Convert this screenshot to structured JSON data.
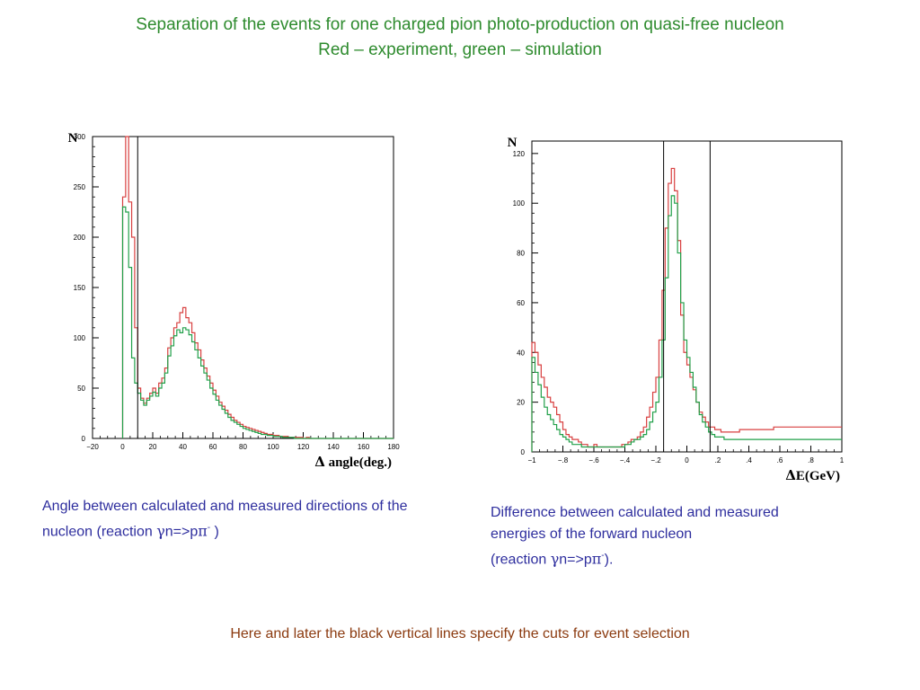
{
  "header": {
    "title_line1": "Separation of the events for one charged pion photo-production on quasi-free nucleon",
    "title_line2": "Red – experiment, green – simulation"
  },
  "captions": {
    "left": {
      "text": "Angle between calculated and measured directions of the nucleon (reaction ",
      "gamma": "γ",
      "mid": "n=>p",
      "pi": "π",
      "minus": "-",
      "end": " )"
    },
    "right": {
      "line1": "Difference between calculated and measured",
      "line2": "energies of the forward nucleon",
      "pre": "(reaction ",
      "gamma": "γ",
      "mid": "n=>p",
      "pi": "π",
      "minus": "-",
      "end": ")."
    }
  },
  "footer": {
    "text": "Here and later the black vertical lines specify the cuts for event selection"
  },
  "colors": {
    "experiment": "#d84040",
    "simulation": "#22a04a",
    "axis": "#000000"
  },
  "chart_data": [
    {
      "type": "histogram",
      "ylabel": "N",
      "xlabel_symbol": "Δ",
      "xlabel": "angle(deg.)",
      "xlim": [
        -20,
        180
      ],
      "ylim": [
        0,
        300
      ],
      "x_ticks": [
        -20,
        0,
        20,
        40,
        60,
        80,
        100,
        120,
        140,
        160,
        180
      ],
      "y_ticks": [
        0,
        50,
        100,
        150,
        200,
        250,
        300
      ],
      "bin_start": 0,
      "bin_width": 2,
      "cuts": [
        10
      ],
      "series": [
        {
          "name": "experiment",
          "values": [
            240,
            305,
            235,
            200,
            110,
            50,
            40,
            35,
            40,
            45,
            50,
            45,
            55,
            60,
            70,
            90,
            100,
            110,
            115,
            125,
            130,
            120,
            115,
            105,
            95,
            88,
            78,
            70,
            62,
            55,
            48,
            42,
            36,
            32,
            28,
            24,
            21,
            18,
            16,
            14,
            12,
            11,
            10,
            9,
            8,
            7,
            6,
            5,
            4,
            4,
            3,
            3,
            2,
            2,
            2,
            1,
            1,
            1,
            1,
            1,
            0,
            1,
            0,
            0,
            0,
            0,
            0,
            0,
            0,
            0,
            0,
            0,
            0,
            0,
            0,
            0,
            0,
            0,
            0,
            0,
            0,
            0,
            0,
            0,
            0,
            0,
            0,
            0,
            0,
            0
          ]
        },
        {
          "name": "simulation",
          "values": [
            230,
            225,
            170,
            80,
            55,
            45,
            38,
            33,
            38,
            42,
            46,
            42,
            50,
            55,
            65,
            82,
            92,
            102,
            108,
            105,
            110,
            108,
            103,
            96,
            88,
            80,
            72,
            65,
            58,
            50,
            44,
            38,
            33,
            29,
            25,
            21,
            18,
            16,
            14,
            12,
            10,
            9,
            8,
            7,
            6,
            5,
            4,
            4,
            3,
            3,
            2,
            2,
            2,
            1,
            1,
            1,
            1,
            0,
            0,
            0,
            0,
            0,
            0,
            0,
            0,
            0,
            0,
            0,
            0,
            0,
            0,
            0,
            0,
            0,
            0,
            0,
            0,
            0,
            0,
            0,
            0,
            0,
            0,
            0,
            0,
            0,
            0,
            0,
            0,
            0
          ]
        }
      ]
    },
    {
      "type": "histogram",
      "ylabel": "N",
      "xlabel_symbol": "Δ",
      "xlabel": "E(GeV)",
      "xlim": [
        -1,
        1
      ],
      "ylim": [
        0,
        125
      ],
      "x_ticks": [
        -1,
        -0.8,
        -0.6,
        -0.4,
        -0.2,
        0,
        0.2,
        0.4,
        0.6,
        0.8,
        1
      ],
      "y_ticks": [
        0,
        20,
        40,
        60,
        80,
        100,
        120
      ],
      "bin_start": -1,
      "bin_width": 0.02,
      "cuts": [
        -0.15,
        0.15
      ],
      "series": [
        {
          "name": "experiment",
          "values": [
            44,
            40,
            35,
            30,
            26,
            22,
            20,
            18,
            15,
            12,
            9,
            7,
            6,
            5,
            5,
            4,
            3,
            3,
            2,
            2,
            3,
            2,
            2,
            2,
            2,
            2,
            2,
            2,
            2,
            3,
            3,
            4,
            5,
            5,
            6,
            8,
            10,
            14,
            18,
            24,
            30,
            45,
            65,
            90,
            108,
            114,
            105,
            85,
            55,
            40,
            35,
            30,
            25,
            20,
            16,
            14,
            12,
            10,
            10,
            9,
            9,
            8,
            8,
            8,
            8,
            8,
            8,
            9,
            9,
            9,
            9,
            9,
            9,
            9,
            9,
            9,
            9,
            9,
            10,
            10,
            10,
            10,
            10,
            10,
            10,
            10,
            10,
            10,
            10,
            10,
            10,
            10,
            10,
            10,
            10,
            10,
            10,
            10,
            10,
            10
          ]
        },
        {
          "name": "simulation",
          "values": [
            38,
            32,
            27,
            22,
            18,
            15,
            13,
            11,
            9,
            7,
            6,
            5,
            4,
            3,
            3,
            3,
            2,
            2,
            2,
            2,
            2,
            2,
            2,
            2,
            2,
            2,
            2,
            2,
            2,
            2,
            3,
            3,
            4,
            5,
            5,
            6,
            7,
            9,
            12,
            16,
            20,
            30,
            45,
            70,
            95,
            103,
            100,
            80,
            60,
            45,
            38,
            32,
            26,
            20,
            15,
            12,
            10,
            8,
            7,
            6,
            6,
            6,
            5,
            5,
            5,
            5,
            5,
            5,
            5,
            5,
            5,
            5,
            5,
            5,
            5,
            5,
            5,
            5,
            5,
            5,
            5,
            5,
            5,
            5,
            5,
            5,
            5,
            5,
            5,
            5,
            5,
            5,
            5,
            5,
            5,
            5,
            5,
            5,
            5,
            5
          ]
        }
      ]
    }
  ]
}
